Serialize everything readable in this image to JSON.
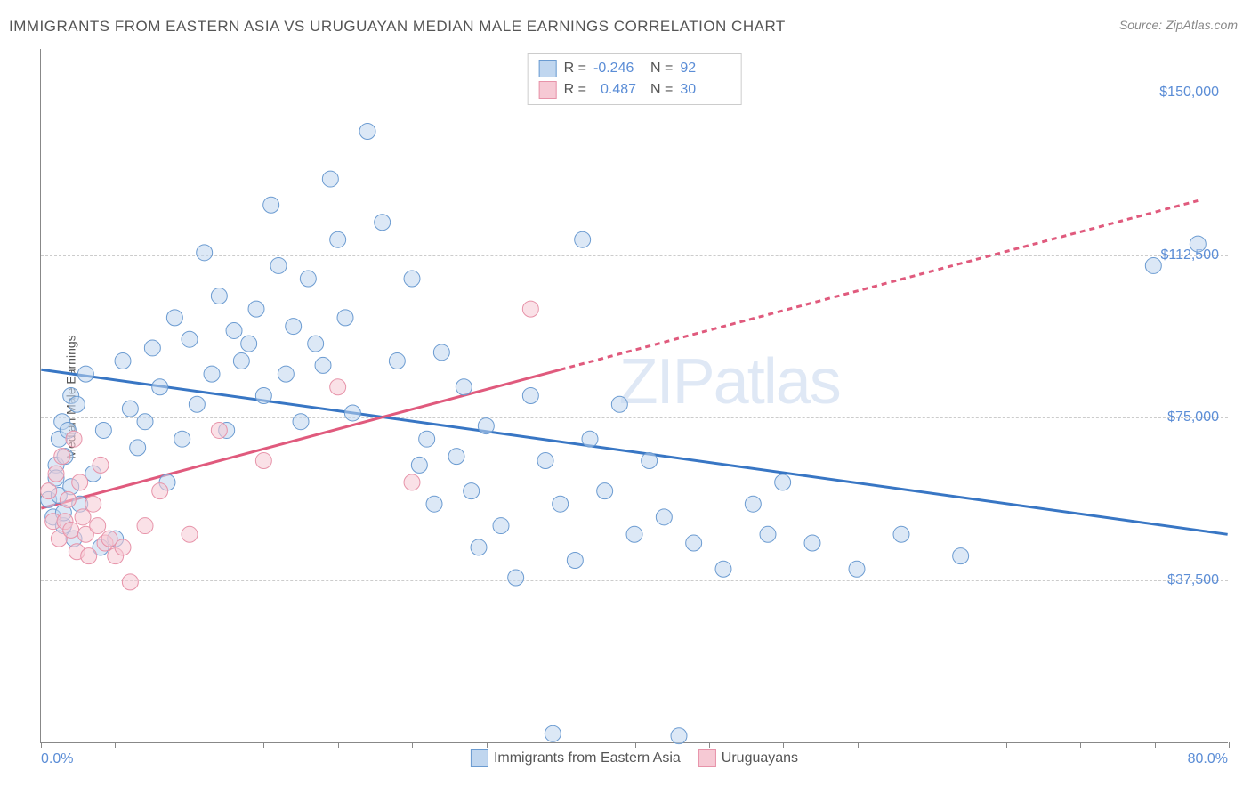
{
  "title": "IMMIGRANTS FROM EASTERN ASIA VS URUGUAYAN MEDIAN MALE EARNINGS CORRELATION CHART",
  "source": "Source: ZipAtlas.com",
  "watermark": "ZIPatlas",
  "y_axis_label": "Median Male Earnings",
  "chart": {
    "type": "scatter",
    "xlim": [
      0,
      80
    ],
    "ylim": [
      0,
      160000
    ],
    "x_ticks_count": 17,
    "x_tick_labels": {
      "first": "0.0%",
      "last": "80.0%"
    },
    "y_gridlines": [
      {
        "value": 37500,
        "label": "$37,500"
      },
      {
        "value": 75000,
        "label": "$75,000"
      },
      {
        "value": 112500,
        "label": "$112,500"
      },
      {
        "value": 150000,
        "label": "$150,000"
      }
    ],
    "background_color": "#ffffff",
    "grid_color": "#cccccc",
    "axis_color": "#888888",
    "tick_label_color": "#5b8dd6",
    "title_color": "#555555",
    "title_fontsize": 17,
    "label_fontsize": 14,
    "tick_fontsize": 16,
    "marker_radius": 9,
    "marker_opacity": 0.55,
    "trend_line_width": 3
  },
  "series": [
    {
      "key": "eastern_asia",
      "label": "Immigrants from Eastern Asia",
      "color_fill": "#c0d6ef",
      "color_stroke": "#6b9bd1",
      "trend_color": "#3876c4",
      "R": "-0.246",
      "N": "92",
      "trend": {
        "x1": 0,
        "y1": 86000,
        "x2": 80,
        "y2": 48000,
        "dashed": false
      },
      "points": [
        [
          0.5,
          56000
        ],
        [
          0.8,
          52000
        ],
        [
          1,
          64000
        ],
        [
          1,
          61000
        ],
        [
          1.2,
          70000
        ],
        [
          1.2,
          57000
        ],
        [
          1.4,
          74000
        ],
        [
          1.5,
          50000
        ],
        [
          1.5,
          53000
        ],
        [
          1.6,
          66000
        ],
        [
          1.8,
          72000
        ],
        [
          2,
          59000
        ],
        [
          2,
          80000
        ],
        [
          2.2,
          47000
        ],
        [
          2.4,
          78000
        ],
        [
          2.6,
          55000
        ],
        [
          3,
          85000
        ],
        [
          3.5,
          62000
        ],
        [
          4,
          45000
        ],
        [
          4.2,
          72000
        ],
        [
          5,
          47000
        ],
        [
          5.5,
          88000
        ],
        [
          6,
          77000
        ],
        [
          6.5,
          68000
        ],
        [
          7,
          74000
        ],
        [
          7.5,
          91000
        ],
        [
          8,
          82000
        ],
        [
          8.5,
          60000
        ],
        [
          9,
          98000
        ],
        [
          9.5,
          70000
        ],
        [
          10,
          93000
        ],
        [
          10.5,
          78000
        ],
        [
          11,
          113000
        ],
        [
          11.5,
          85000
        ],
        [
          12,
          103000
        ],
        [
          12.5,
          72000
        ],
        [
          13,
          95000
        ],
        [
          13.5,
          88000
        ],
        [
          14,
          92000
        ],
        [
          14.5,
          100000
        ],
        [
          15,
          80000
        ],
        [
          15.5,
          124000
        ],
        [
          16,
          110000
        ],
        [
          16.5,
          85000
        ],
        [
          17,
          96000
        ],
        [
          17.5,
          74000
        ],
        [
          18,
          107000
        ],
        [
          18.5,
          92000
        ],
        [
          19,
          87000
        ],
        [
          19.5,
          130000
        ],
        [
          20,
          116000
        ],
        [
          20.5,
          98000
        ],
        [
          21,
          76000
        ],
        [
          22,
          141000
        ],
        [
          23,
          120000
        ],
        [
          24,
          88000
        ],
        [
          25,
          107000
        ],
        [
          25.5,
          64000
        ],
        [
          26,
          70000
        ],
        [
          26.5,
          55000
        ],
        [
          27,
          90000
        ],
        [
          28,
          66000
        ],
        [
          28.5,
          82000
        ],
        [
          29,
          58000
        ],
        [
          29.5,
          45000
        ],
        [
          30,
          73000
        ],
        [
          31,
          50000
        ],
        [
          32,
          38000
        ],
        [
          33,
          80000
        ],
        [
          34,
          65000
        ],
        [
          34.5,
          2000
        ],
        [
          35,
          55000
        ],
        [
          36,
          42000
        ],
        [
          36.5,
          116000
        ],
        [
          37,
          70000
        ],
        [
          38,
          58000
        ],
        [
          39,
          78000
        ],
        [
          40,
          48000
        ],
        [
          41,
          65000
        ],
        [
          42,
          52000
        ],
        [
          43,
          1500
        ],
        [
          44,
          46000
        ],
        [
          46,
          40000
        ],
        [
          48,
          55000
        ],
        [
          49,
          48000
        ],
        [
          50,
          60000
        ],
        [
          52,
          46000
        ],
        [
          55,
          40000
        ],
        [
          58,
          48000
        ],
        [
          62,
          43000
        ],
        [
          75,
          110000
        ],
        [
          78,
          115000
        ]
      ]
    },
    {
      "key": "uruguayans",
      "label": "Uruguayans",
      "color_fill": "#f6c9d4",
      "color_stroke": "#e793a9",
      "trend_color": "#e05a7d",
      "R": "0.487",
      "N": "30",
      "trend": {
        "x1": 0,
        "y1": 54000,
        "x2": 35,
        "y2": 86000,
        "dashed": false
      },
      "trend_dashed": {
        "x1": 35,
        "y1": 86000,
        "x2": 78,
        "y2": 125000
      },
      "points": [
        [
          0.5,
          58000
        ],
        [
          0.8,
          51000
        ],
        [
          1,
          62000
        ],
        [
          1.2,
          47000
        ],
        [
          1.4,
          66000
        ],
        [
          1.6,
          51000
        ],
        [
          1.8,
          56000
        ],
        [
          2,
          49000
        ],
        [
          2.2,
          70000
        ],
        [
          2.4,
          44000
        ],
        [
          2.6,
          60000
        ],
        [
          2.8,
          52000
        ],
        [
          3,
          48000
        ],
        [
          3.2,
          43000
        ],
        [
          3.5,
          55000
        ],
        [
          3.8,
          50000
        ],
        [
          4,
          64000
        ],
        [
          4.3,
          46000
        ],
        [
          4.6,
          47000
        ],
        [
          5,
          43000
        ],
        [
          5.5,
          45000
        ],
        [
          6,
          37000
        ],
        [
          7,
          50000
        ],
        [
          8,
          58000
        ],
        [
          10,
          48000
        ],
        [
          12,
          72000
        ],
        [
          15,
          65000
        ],
        [
          20,
          82000
        ],
        [
          25,
          60000
        ],
        [
          33,
          100000
        ]
      ]
    }
  ],
  "stats_box": {
    "R_label": "R =",
    "N_label": "N ="
  }
}
